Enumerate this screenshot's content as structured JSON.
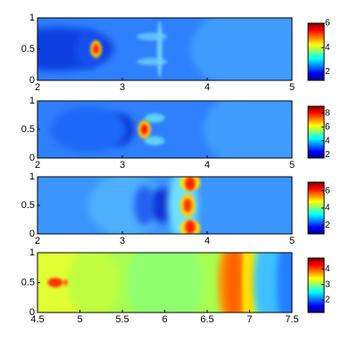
{
  "chart_data": [
    {
      "type": "heatmap",
      "colormap": "jet",
      "xlim": [
        2,
        5
      ],
      "ylim": [
        0,
        1
      ],
      "xticks": [
        2,
        3,
        4,
        5
      ],
      "yticks": [
        0,
        0.5,
        1
      ],
      "colorbar": {
        "lim": [
          1.3,
          6
        ],
        "ticks": [
          2,
          4,
          6
        ]
      }
    },
    {
      "type": "heatmap",
      "colormap": "jet",
      "xlim": [
        2,
        5
      ],
      "ylim": [
        0,
        1
      ],
      "xticks": [
        2,
        3,
        4,
        5
      ],
      "yticks": [
        0,
        0.5,
        1
      ],
      "colorbar": {
        "lim": [
          1.5,
          9
        ],
        "ticks": [
          2,
          4,
          6,
          8
        ]
      }
    },
    {
      "type": "heatmap",
      "colormap": "jet",
      "xlim": [
        2,
        5
      ],
      "ylim": [
        0,
        1
      ],
      "xticks": [
        2,
        3,
        4,
        5
      ],
      "yticks": [
        0,
        0.5,
        1
      ],
      "colorbar": {
        "lim": [
          1,
          7
        ],
        "ticks": [
          2,
          4,
          6
        ]
      }
    },
    {
      "type": "heatmap",
      "colormap": "jet",
      "xlim": [
        4.5,
        7.5
      ],
      "ylim": [
        0,
        1
      ],
      "xticks": [
        4.5,
        5,
        5.5,
        6,
        6.5,
        7,
        7.5
      ],
      "yticks": [
        0,
        0.5,
        1
      ],
      "colorbar": {
        "lim": [
          1.2,
          4.7
        ],
        "ticks": [
          2,
          3,
          4
        ]
      }
    }
  ]
}
